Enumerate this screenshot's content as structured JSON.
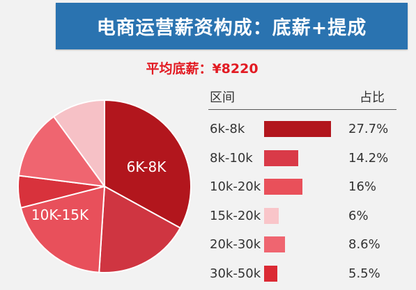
{
  "title": "电商运营薪资构成：底薪+提成",
  "subtitle": "平均底薪：¥8220",
  "table": {
    "header_range": "区间",
    "header_share": "占比"
  },
  "chart_data": {
    "type": "pie",
    "pie": {
      "slice_labels": [
        "6K-8K",
        "10K-15K"
      ],
      "slices": [
        {
          "label": "6K-8K",
          "value": 33,
          "color": "#b2161d"
        },
        {
          "label": "",
          "value": 18,
          "color": "#cf3541"
        },
        {
          "label": "10K-15K",
          "value": 20,
          "color": "#e8505b"
        },
        {
          "label": "",
          "value": 6,
          "color": "#d8323c"
        },
        {
          "label": "",
          "value": 13,
          "color": "#ef6570"
        },
        {
          "label": "",
          "value": 10,
          "color": "#f6c1c6"
        }
      ]
    },
    "bars": {
      "type": "bar",
      "categories": [
        "6k-8k",
        "8k-10k",
        "10k-20k",
        "15k-20k",
        "20k-30k",
        "30k-50k"
      ],
      "values": [
        27.7,
        14.2,
        16,
        6,
        8.6,
        5.5
      ],
      "value_labels": [
        "27.7%",
        "14.2%",
        "16%",
        "6%",
        "8.6%",
        "5.5%"
      ],
      "colors": [
        "#b2161d",
        "#d93a48",
        "#e9505a",
        "#f9c5c9",
        "#ef6570",
        "#db2a34"
      ],
      "xlim": [
        0,
        27.7
      ]
    }
  }
}
